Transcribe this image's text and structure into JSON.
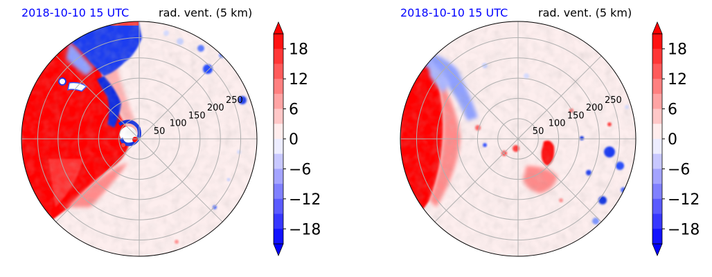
{
  "colors": {
    "title_date": "#0000ff",
    "grid": "#b0b0b0",
    "cbar_low": "#0000ff",
    "cbar_mid": "#ffffff",
    "cbar_high": "#ff0000"
  },
  "chart_data": [
    {
      "type": "heatmap",
      "projection": "polar",
      "title_date": "2018-10-10 15 UTC",
      "title_var": "rad. vent. (5 km)",
      "radial_ticks": [
        "50",
        "100",
        "150",
        "200",
        "250"
      ],
      "radial_tick_values": [
        50,
        100,
        150,
        200,
        250
      ],
      "radial_max": 290,
      "grid": true,
      "colorbar": {
        "ticks": [
          "18",
          "12",
          "6",
          "0",
          "−6",
          "−12",
          "−18"
        ],
        "tick_values": [
          18,
          12,
          6,
          0,
          -6,
          -12,
          -18
        ],
        "range": [
          -21,
          21
        ],
        "extend": "both"
      }
    },
    {
      "type": "heatmap",
      "projection": "polar",
      "title_date": "2018-10-10 15 UTC",
      "title_var": "rad. vent. (5 km)",
      "radial_ticks": [
        "50",
        "100",
        "150",
        "200",
        "250"
      ],
      "radial_tick_values": [
        50,
        100,
        150,
        200,
        250
      ],
      "radial_max": 290,
      "grid": true,
      "colorbar": {
        "ticks": [
          "18",
          "12",
          "6",
          "0",
          "−6",
          "−12",
          "−18"
        ],
        "tick_values": [
          18,
          12,
          6,
          0,
          -6,
          -12,
          -18
        ],
        "range": [
          -21,
          21
        ],
        "extend": "both"
      }
    }
  ]
}
